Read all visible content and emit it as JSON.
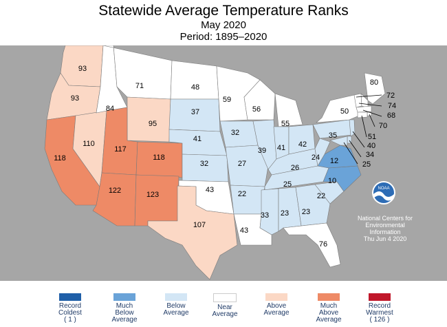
{
  "header": {
    "title": "Statewide Average Temperature Ranks",
    "subtitle": "May 2020",
    "period": "Period: 1895–2020"
  },
  "colors": {
    "background": "#a6a6a6",
    "land": "#ffffff",
    "record_coldest": "#1f5fa8",
    "much_below": "#6aa3d8",
    "below": "#d3e6f5",
    "near": "#ffffff",
    "above": "#fbd8c5",
    "much_above": "#ee8a66",
    "record_warmest": "#c0172a"
  },
  "legend": [
    {
      "label": "Record Coldest ( 1 )",
      "lines": [
        "Record",
        "Coldest",
        "( 1 )"
      ],
      "color": "#1f5fa8"
    },
    {
      "label": "Much Below Average",
      "lines": [
        "Much",
        "Below",
        "Average"
      ],
      "color": "#6aa3d8"
    },
    {
      "label": "Below Average",
      "lines": [
        "Below",
        "Average"
      ],
      "color": "#d3e6f5"
    },
    {
      "label": "Near Average",
      "lines": [
        "Near",
        "Average"
      ],
      "color": "#ffffff"
    },
    {
      "label": "Above Average",
      "lines": [
        "Above",
        "Average"
      ],
      "color": "#fbd8c5"
    },
    {
      "label": "Much Above Average",
      "lines": [
        "Much",
        "Above",
        "Average"
      ],
      "color": "#ee8a66"
    },
    {
      "label": "Record Warmest ( 126 )",
      "lines": [
        "Record",
        "Warmest",
        "( 126 )"
      ],
      "color": "#c0172a"
    }
  ],
  "credit": {
    "logo_text": "NOAA",
    "lines": [
      "National Centers for",
      "Environmental",
      "Information"
    ],
    "date": "Thu Jun  4 2020"
  },
  "states": [
    {
      "state": "WA",
      "rank": "93",
      "category": "above"
    },
    {
      "state": "OR",
      "rank": "93",
      "category": "above"
    },
    {
      "state": "CA",
      "rank": "118",
      "category": "much_above"
    },
    {
      "state": "ID",
      "rank": "84",
      "category": "near"
    },
    {
      "state": "NV",
      "rank": "110",
      "category": "above"
    },
    {
      "state": "MT",
      "rank": "71",
      "category": "near"
    },
    {
      "state": "WY",
      "rank": "95",
      "category": "above"
    },
    {
      "state": "UT",
      "rank": "117",
      "category": "much_above"
    },
    {
      "state": "CO",
      "rank": "118",
      "category": "much_above"
    },
    {
      "state": "AZ",
      "rank": "122",
      "category": "much_above"
    },
    {
      "state": "NM",
      "rank": "123",
      "category": "much_above"
    },
    {
      "state": "ND",
      "rank": "48",
      "category": "near"
    },
    {
      "state": "SD",
      "rank": "37",
      "category": "below"
    },
    {
      "state": "NE",
      "rank": "41",
      "category": "below"
    },
    {
      "state": "KS",
      "rank": "32",
      "category": "below"
    },
    {
      "state": "OK",
      "rank": "43",
      "category": "near"
    },
    {
      "state": "TX",
      "rank": "107",
      "category": "above"
    },
    {
      "state": "MN",
      "rank": "59",
      "category": "near"
    },
    {
      "state": "IA",
      "rank": "32",
      "category": "below"
    },
    {
      "state": "MO",
      "rank": "27",
      "category": "below"
    },
    {
      "state": "AR",
      "rank": "22",
      "category": "below"
    },
    {
      "state": "LA",
      "rank": "43",
      "category": "near"
    },
    {
      "state": "WI",
      "rank": "56",
      "category": "near"
    },
    {
      "state": "IL",
      "rank": "39",
      "category": "below"
    },
    {
      "state": "MI",
      "rank": "55",
      "category": "near"
    },
    {
      "state": "IN",
      "rank": "41",
      "category": "below"
    },
    {
      "state": "OH",
      "rank": "42",
      "category": "below"
    },
    {
      "state": "KY",
      "rank": "26",
      "category": "below"
    },
    {
      "state": "TN",
      "rank": "25",
      "category": "below"
    },
    {
      "state": "MS",
      "rank": "33",
      "category": "below"
    },
    {
      "state": "AL",
      "rank": "23",
      "category": "below"
    },
    {
      "state": "GA",
      "rank": "23",
      "category": "below"
    },
    {
      "state": "FL",
      "rank": "76",
      "category": "near"
    },
    {
      "state": "SC",
      "rank": "22",
      "category": "below"
    },
    {
      "state": "NC",
      "rank": "10",
      "category": "much_below"
    },
    {
      "state": "VA",
      "rank": "12",
      "category": "much_below"
    },
    {
      "state": "WV",
      "rank": "24",
      "category": "below"
    },
    {
      "state": "PA",
      "rank": "35",
      "category": "below"
    },
    {
      "state": "NY",
      "rank": "50",
      "category": "near"
    },
    {
      "state": "ME",
      "rank": "80",
      "category": "near"
    },
    {
      "state": "NH",
      "rank": "72",
      "category": "near"
    },
    {
      "state": "VT",
      "rank": "74",
      "category": "near"
    },
    {
      "state": "MA",
      "rank": "68",
      "category": "near"
    },
    {
      "state": "RI",
      "rank": "70",
      "category": "near"
    },
    {
      "state": "CT",
      "rank": "51",
      "category": "near"
    },
    {
      "state": "NJ",
      "rank": "40",
      "category": "below"
    },
    {
      "state": "DE",
      "rank": "34",
      "category": "below"
    },
    {
      "state": "MD",
      "rank": "25",
      "category": "below"
    }
  ]
}
